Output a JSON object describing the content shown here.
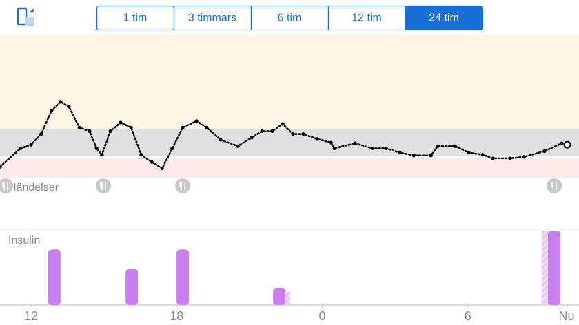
{
  "tabs": {
    "items": [
      "1 tim",
      "3 timmars",
      "6 tim",
      "12 tim",
      "24 tim"
    ],
    "selected": 4
  },
  "chart_data": {
    "type": "scatter",
    "x": [
      10.72,
      11.57,
      12.0,
      12.42,
      12.85,
      13.22,
      13.56,
      13.99,
      14.41,
      14.7,
      14.92,
      15.27,
      15.69,
      16.12,
      16.54,
      16.97,
      17.4,
      17.82,
      18.25,
      18.82,
      19.24,
      19.81,
      20.52,
      21.09,
      21.52,
      21.94,
      22.37,
      22.79,
      23.22,
      23.79,
      24.36,
      24.5,
      25.35,
      26.06,
      26.63,
      27.2,
      27.77,
      28.48,
      28.76,
      29.47,
      30.04,
      30.61,
      31.03,
      31.74,
      32.31,
      33.16,
      33.87,
      34.1
    ],
    "values": [
      3.5,
      6.1,
      6.6,
      8.1,
      11.4,
      12.6,
      11.9,
      9.0,
      8.5,
      6.1,
      5.2,
      8.5,
      9.7,
      9.0,
      5.2,
      4.2,
      3.3,
      6.1,
      9.0,
      9.9,
      9.0,
      7.3,
      6.4,
      7.6,
      8.5,
      8.5,
      9.5,
      8.1,
      8.1,
      7.4,
      6.9,
      6.1,
      6.8,
      6.1,
      6.1,
      5.5,
      5.1,
      5.1,
      6.4,
      6.4,
      5.5,
      5.2,
      4.7,
      4.7,
      4.9,
      5.7,
      6.8,
      6.6
    ],
    "color": "#000000",
    "xlim": [
      10.72,
      34.58
    ],
    "xticks": [
      12,
      18,
      {
        "value": 24,
        "label": "0"
      },
      {
        "value": 30,
        "label": "6"
      },
      {
        "value": 34.1,
        "label": "Nu"
      }
    ],
    "ylim": [
      2,
      22
    ],
    "bands": [
      {
        "range": [
          8.8,
          22
        ],
        "color": "#fdf6e6"
      },
      {
        "range": [
          5,
          8.8
        ],
        "color": "#e0e0e0"
      },
      {
        "range": [
          2,
          4.7
        ],
        "color": "#fde8ea"
      }
    ],
    "events": {
      "label": "Händelser",
      "x": [
        10.95,
        14.98,
        18.25,
        33.56
      ]
    },
    "insulin": {
      "label": "Insulin",
      "x": [
        12.96,
        16.15,
        18.25,
        22.23,
        33.56
      ],
      "values": [
        8,
        5.2,
        8,
        2.5,
        10.7
      ],
      "color": "#c97ff0",
      "ylim": [
        0,
        10.9
      ]
    }
  }
}
